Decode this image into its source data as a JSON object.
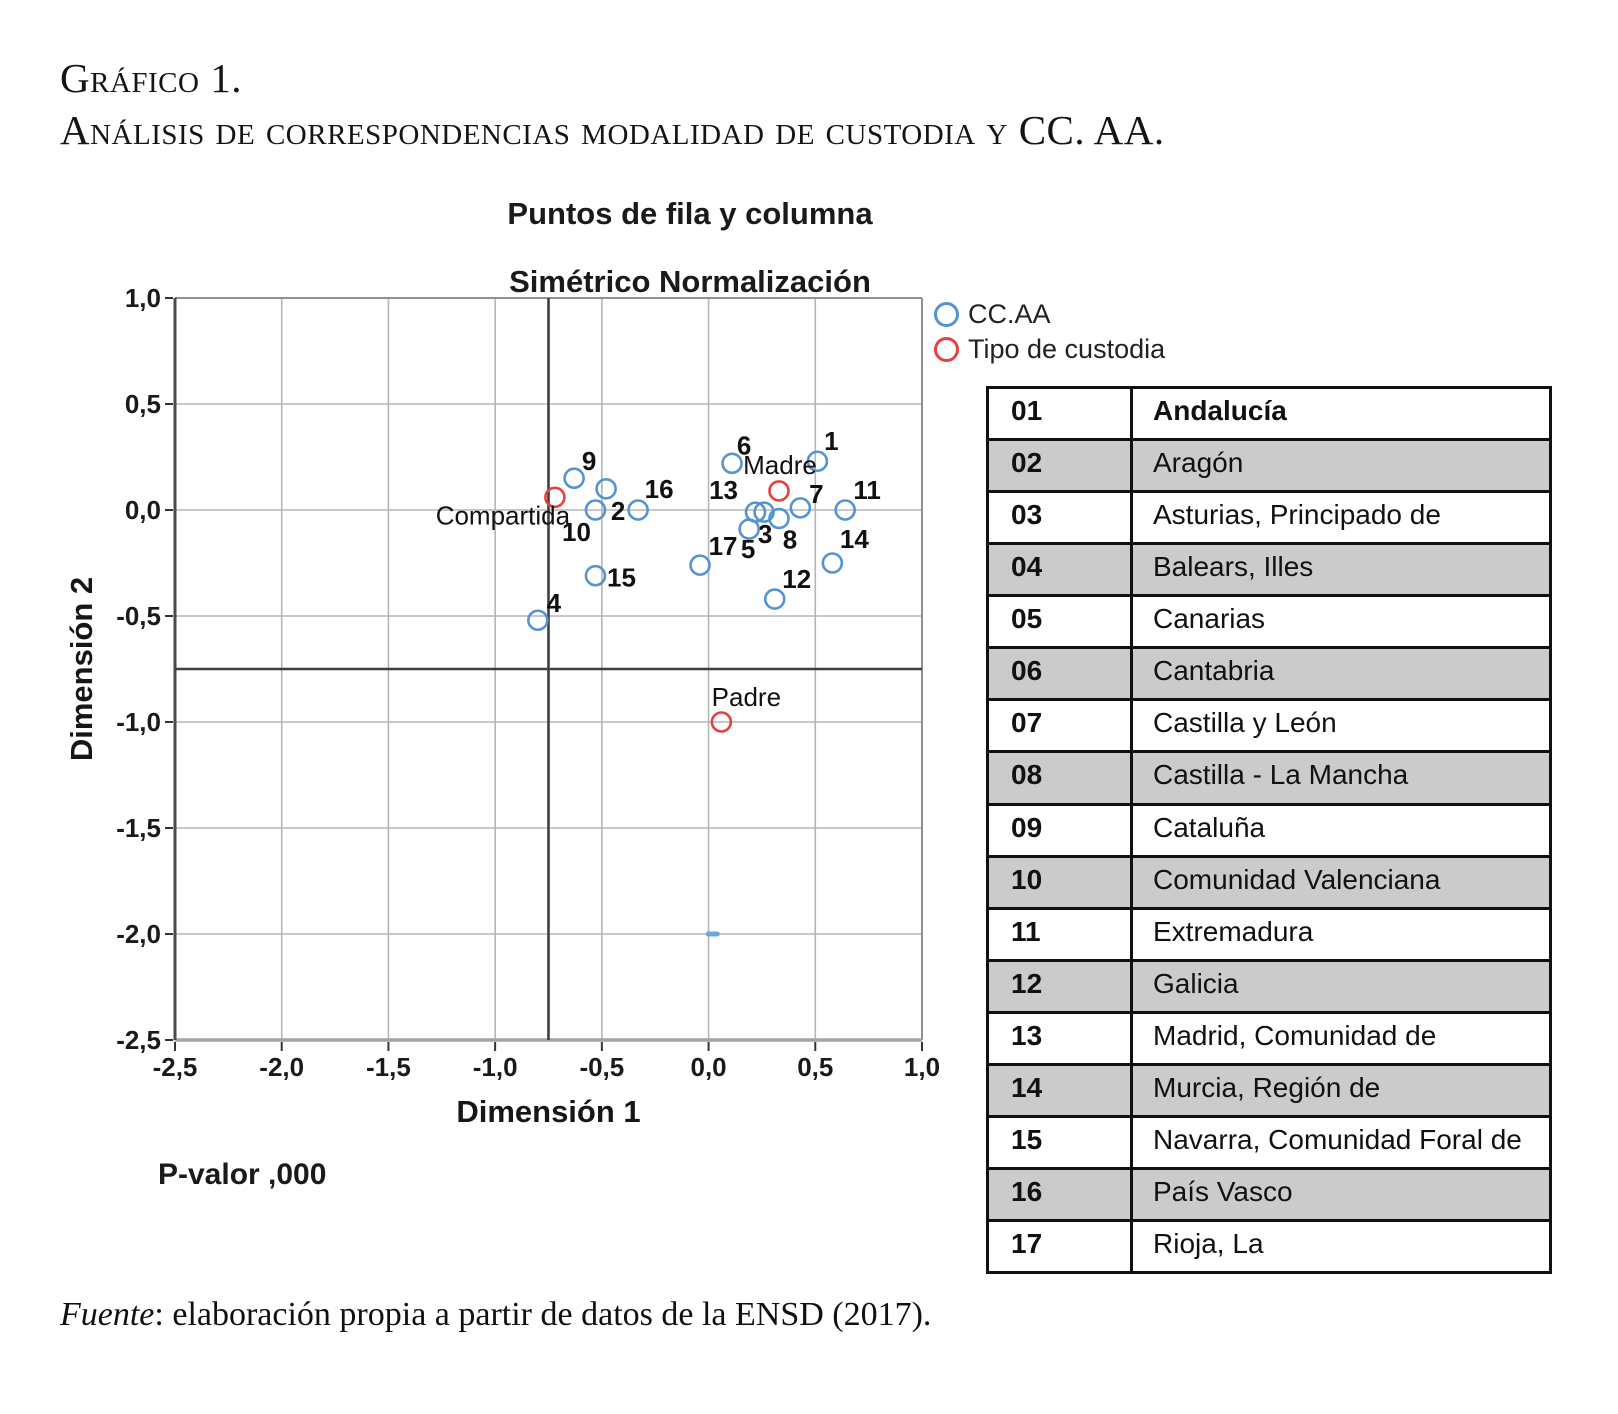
{
  "page": {
    "heading_line1": "Gráfico 1.",
    "heading_line2": "Análisis de correspondencias modalidad de custodia y CC. AA.",
    "source_prefix": "Fuente",
    "source_rest": ": elaboración propia a partir de datos de la ENSD (2017)."
  },
  "chart_data": {
    "type": "scatter",
    "title": "Puntos de fila y columna",
    "subtitle": "Simétrico Normalización",
    "xlabel": "Dimensión 1",
    "ylabel": "Dimensión 2",
    "p_value_label": "P-valor ,000",
    "xlim": [
      -2.5,
      1.0
    ],
    "ylim": [
      -2.5,
      1.0
    ],
    "grid": true,
    "x_ticks": [
      {
        "v": -2.5,
        "label": "-2,5"
      },
      {
        "v": -2.0,
        "label": "-2,0"
      },
      {
        "v": -1.5,
        "label": "-1,5"
      },
      {
        "v": -1.0,
        "label": "-1,0"
      },
      {
        "v": -0.5,
        "label": "-0,5"
      },
      {
        "v": 0.0,
        "label": "0,0"
      },
      {
        "v": 0.5,
        "label": "0,5"
      },
      {
        "v": 1.0,
        "label": "1,0"
      }
    ],
    "y_ticks": [
      {
        "v": 1.0,
        "label": "1,0"
      },
      {
        "v": 0.5,
        "label": "0,5"
      },
      {
        "v": 0.0,
        "label": "0,0"
      },
      {
        "v": -0.5,
        "label": "-0,5"
      },
      {
        "v": -1.0,
        "label": "-1,0"
      },
      {
        "v": -1.5,
        "label": "-1,5"
      },
      {
        "v": -2.0,
        "label": "-2,0"
      },
      {
        "v": -2.5,
        "label": "-2,5"
      }
    ],
    "reference_lines": {
      "x": -0.75,
      "y": -0.75
    },
    "colors": {
      "ccaa": "#5594d0",
      "custodia": "#e8403c",
      "grid": "#b5b5b5",
      "border": "#909090",
      "ref": "#3f3f3f",
      "tick_text": "#1a1a1a"
    },
    "legend": [
      {
        "label": "CC.AA",
        "color": "#5594d0"
      },
      {
        "label": "Tipo de custodia",
        "color": "#e8403c"
      }
    ],
    "series": [
      {
        "name": "CC.AA",
        "color": "#5594d0",
        "points": [
          {
            "label": "1",
            "x": 0.51,
            "y": 0.23,
            "dx": 14,
            "dy": -20,
            "bold": true
          },
          {
            "label": "2",
            "x": -0.48,
            "y": 0.1,
            "dx": 12,
            "dy": 22,
            "bold": true
          },
          {
            "label": "3",
            "x": 0.26,
            "y": -0.01,
            "dx": 1,
            "dy": 22,
            "bold": true
          },
          {
            "label": "4",
            "x": -0.8,
            "y": -0.52,
            "dx": 16,
            "dy": -17,
            "bold": true
          },
          {
            "label": "5",
            "x": 0.19,
            "y": -0.09,
            "dx": -1,
            "dy": 20,
            "bold": true
          },
          {
            "label": "6",
            "x": 0.11,
            "y": 0.22,
            "dx": 12,
            "dy": -18,
            "bold": true
          },
          {
            "label": "7",
            "x": 0.43,
            "y": 0.01,
            "dx": 16,
            "dy": -14,
            "bold": true
          },
          {
            "label": "8",
            "x": 0.33,
            "y": -0.04,
            "dx": 11,
            "dy": 21,
            "bold": true
          },
          {
            "label": "9",
            "x": -0.63,
            "y": 0.15,
            "dx": 15,
            "dy": -17,
            "bold": true
          },
          {
            "label": "10",
            "x": -0.53,
            "y": 0.0,
            "dx": -19,
            "dy": 22,
            "bold": true
          },
          {
            "label": "11",
            "x": 0.64,
            "y": 0.0,
            "dx": 22,
            "dy": -20,
            "bold": true
          },
          {
            "label": "12",
            "x": 0.31,
            "y": -0.42,
            "dx": 22,
            "dy": -20,
            "bold": true
          },
          {
            "label": "13",
            "x": 0.22,
            "y": -0.01,
            "dx": -32,
            "dy": -22,
            "bold": true
          },
          {
            "label": "14",
            "x": 0.58,
            "y": -0.25,
            "dx": 22,
            "dy": -24,
            "bold": true
          },
          {
            "label": "15",
            "x": -0.53,
            "y": -0.31,
            "dx": 26,
            "dy": 2,
            "bold": true
          },
          {
            "label": "16",
            "x": -0.33,
            "y": 0.0,
            "dx": 21,
            "dy": -21,
            "bold": true
          },
          {
            "label": "17",
            "x": -0.04,
            "y": -0.26,
            "dx": 23,
            "dy": -19,
            "bold": true
          }
        ]
      },
      {
        "name": "Tipo de custodia",
        "color": "#e8403c",
        "points": [
          {
            "label": "Compartida",
            "x": -0.72,
            "y": 0.06,
            "dx": -52,
            "dy": 18,
            "bold": false
          },
          {
            "label": "Madre",
            "x": 0.33,
            "y": 0.09,
            "dx": 1,
            "dy": -26,
            "bold": false
          },
          {
            "label": "Padre",
            "x": 0.06,
            "y": -1.0,
            "dx": 25,
            "dy": -25,
            "bold": false
          }
        ]
      }
    ],
    "stray_mark": {
      "x": 0.02,
      "y": -2.0
    }
  },
  "legend_table": {
    "rows": [
      {
        "code": "01",
        "name": "Andalucía"
      },
      {
        "code": "02",
        "name": "Aragón"
      },
      {
        "code": "03",
        "name": "Asturias, Principado de"
      },
      {
        "code": "04",
        "name": "Balears, Illes"
      },
      {
        "code": "05",
        "name": "Canarias"
      },
      {
        "code": "06",
        "name": "Cantabria"
      },
      {
        "code": "07",
        "name": "Castilla y León"
      },
      {
        "code": "08",
        "name": "Castilla - La Mancha"
      },
      {
        "code": "09",
        "name": "Cataluña"
      },
      {
        "code": "10",
        "name": "Comunidad Valenciana"
      },
      {
        "code": "11",
        "name": "Extremadura"
      },
      {
        "code": "12",
        "name": "Galicia"
      },
      {
        "code": "13",
        "name": "Madrid, Comunidad de"
      },
      {
        "code": "14",
        "name": "Murcia, Región de"
      },
      {
        "code": "15",
        "name": "Navarra, Comunidad Foral de"
      },
      {
        "code": "16",
        "name": "País Vasco"
      },
      {
        "code": "17",
        "name": "Rioja, La"
      }
    ]
  }
}
